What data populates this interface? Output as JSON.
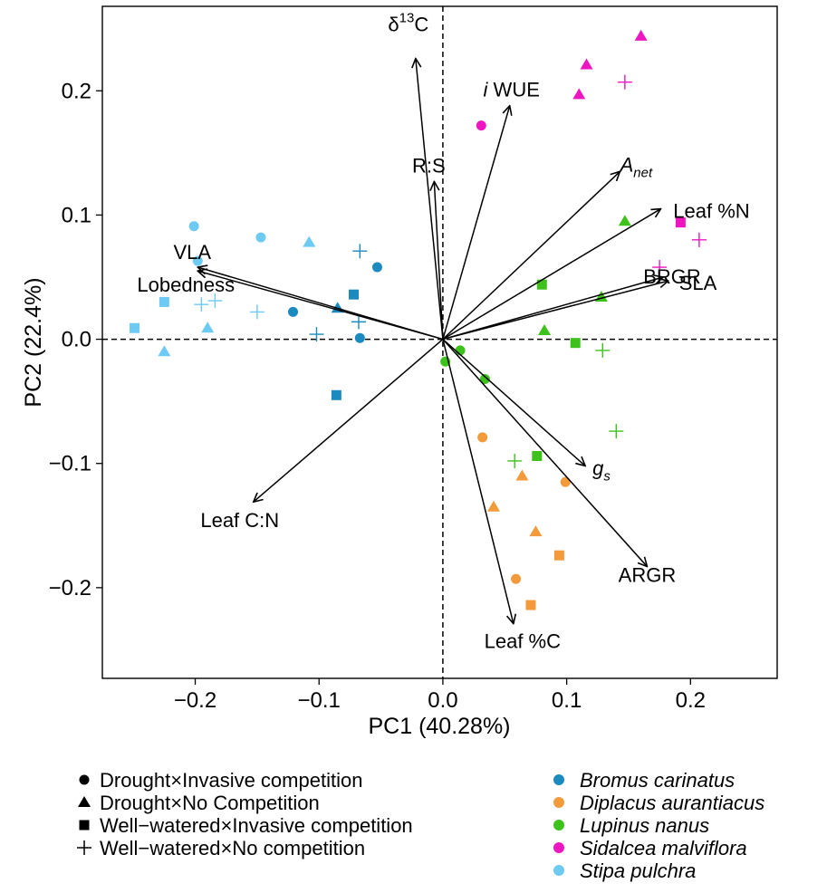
{
  "chart_data": {
    "type": "scatter",
    "subtype": "pca-biplot",
    "title": "",
    "xlabel": "PC1 (40.28%)",
    "ylabel": "PC2 (22.4%)",
    "xlim": [
      -0.275,
      0.27
    ],
    "ylim": [
      -0.273,
      0.268
    ],
    "x_ticks": [
      -0.2,
      -0.1,
      0.0,
      0.1,
      0.2
    ],
    "x_tick_labels": [
      "−0.2",
      "−0.1",
      "0.0",
      "0.1",
      "0.2"
    ],
    "y_ticks": [
      -0.2,
      -0.1,
      0.0,
      0.1,
      0.2
    ],
    "y_tick_labels": [
      "−0.2",
      "−0.1",
      "0.0",
      "0.1",
      "0.2"
    ],
    "grid": false,
    "reference_lines": "dashed lines at x=0 and y=0",
    "treatments": [
      {
        "key": "DI",
        "shape": "circle",
        "label": "Drought×Invasive competition"
      },
      {
        "key": "DN",
        "shape": "triangle",
        "label": "Drought×No Competition"
      },
      {
        "key": "WI",
        "shape": "square",
        "label": "Well−watered×Invasive competition"
      },
      {
        "key": "WN",
        "shape": "plus",
        "label": "Well−watered×No competition"
      }
    ],
    "species": [
      {
        "key": "BC",
        "label": "Bromus carinatus",
        "color": "#1a8abf"
      },
      {
        "key": "DA",
        "label": "Diplacus aurantiacus",
        "color": "#f39a3b"
      },
      {
        "key": "LN",
        "label": "Lupinus nanus",
        "color": "#3cc21b"
      },
      {
        "key": "SM",
        "label": "Sidalcea malviflora",
        "color": "#ee16c1"
      },
      {
        "key": "SP",
        "label": "Stipa pulchra",
        "color": "#6ccaf3"
      }
    ],
    "points": [
      {
        "x": -0.053,
        "y": 0.058,
        "species": "BC",
        "treatment": "DI"
      },
      {
        "x": -0.121,
        "y": 0.022,
        "species": "BC",
        "treatment": "DI"
      },
      {
        "x": -0.067,
        "y": 0.001,
        "species": "BC",
        "treatment": "DI"
      },
      {
        "x": -0.085,
        "y": 0.025,
        "species": "BC",
        "treatment": "DN"
      },
      {
        "x": -0.072,
        "y": 0.036,
        "species": "BC",
        "treatment": "WI"
      },
      {
        "x": -0.086,
        "y": -0.045,
        "species": "BC",
        "treatment": "WI"
      },
      {
        "x": -0.067,
        "y": 0.071,
        "species": "BC",
        "treatment": "WN"
      },
      {
        "x": -0.068,
        "y": 0.014,
        "species": "BC",
        "treatment": "WN"
      },
      {
        "x": -0.102,
        "y": 0.004,
        "species": "BC",
        "treatment": "WN"
      },
      {
        "x": -0.201,
        "y": 0.091,
        "species": "SP",
        "treatment": "DI"
      },
      {
        "x": -0.147,
        "y": 0.082,
        "species": "SP",
        "treatment": "DI"
      },
      {
        "x": -0.198,
        "y": 0.063,
        "species": "SP",
        "treatment": "DI"
      },
      {
        "x": -0.108,
        "y": 0.078,
        "species": "SP",
        "treatment": "DN"
      },
      {
        "x": -0.19,
        "y": 0.009,
        "species": "SP",
        "treatment": "DN"
      },
      {
        "x": -0.225,
        "y": -0.01,
        "species": "SP",
        "treatment": "DN"
      },
      {
        "x": -0.225,
        "y": 0.03,
        "species": "SP",
        "treatment": "WI"
      },
      {
        "x": -0.249,
        "y": 0.009,
        "species": "SP",
        "treatment": "WI"
      },
      {
        "x": -0.195,
        "y": 0.028,
        "species": "SP",
        "treatment": "WN"
      },
      {
        "x": -0.184,
        "y": 0.031,
        "species": "SP",
        "treatment": "WN"
      },
      {
        "x": -0.15,
        "y": 0.022,
        "species": "SP",
        "treatment": "WN"
      },
      {
        "x": 0.002,
        "y": -0.018,
        "species": "LN",
        "treatment": "DI"
      },
      {
        "x": 0.014,
        "y": -0.009,
        "species": "LN",
        "treatment": "DI"
      },
      {
        "x": 0.034,
        "y": -0.032,
        "species": "LN",
        "treatment": "DI"
      },
      {
        "x": 0.147,
        "y": 0.095,
        "species": "LN",
        "treatment": "DN"
      },
      {
        "x": 0.128,
        "y": 0.034,
        "species": "LN",
        "treatment": "DN"
      },
      {
        "x": 0.082,
        "y": 0.007,
        "species": "LN",
        "treatment": "DN"
      },
      {
        "x": 0.08,
        "y": 0.044,
        "species": "LN",
        "treatment": "WI"
      },
      {
        "x": 0.107,
        "y": -0.003,
        "species": "LN",
        "treatment": "WI"
      },
      {
        "x": 0.076,
        "y": -0.094,
        "species": "LN",
        "treatment": "WI"
      },
      {
        "x": 0.129,
        "y": -0.009,
        "species": "LN",
        "treatment": "WN"
      },
      {
        "x": 0.14,
        "y": -0.074,
        "species": "LN",
        "treatment": "WN"
      },
      {
        "x": 0.058,
        "y": -0.098,
        "species": "LN",
        "treatment": "WN"
      },
      {
        "x": 0.032,
        "y": -0.079,
        "species": "DA",
        "treatment": "DI"
      },
      {
        "x": 0.099,
        "y": -0.115,
        "species": "DA",
        "treatment": "DI"
      },
      {
        "x": 0.059,
        "y": -0.193,
        "species": "DA",
        "treatment": "DI"
      },
      {
        "x": 0.064,
        "y": -0.11,
        "species": "DA",
        "treatment": "DN"
      },
      {
        "x": 0.041,
        "y": -0.135,
        "species": "DA",
        "treatment": "DN"
      },
      {
        "x": 0.075,
        "y": -0.155,
        "species": "DA",
        "treatment": "DN"
      },
      {
        "x": 0.094,
        "y": -0.174,
        "species": "DA",
        "treatment": "WI"
      },
      {
        "x": 0.071,
        "y": -0.214,
        "species": "DA",
        "treatment": "WI"
      },
      {
        "x": 0.031,
        "y": 0.172,
        "species": "SM",
        "treatment": "DI"
      },
      {
        "x": 0.16,
        "y": 0.244,
        "species": "SM",
        "treatment": "DN"
      },
      {
        "x": 0.116,
        "y": 0.221,
        "species": "SM",
        "treatment": "DN"
      },
      {
        "x": 0.11,
        "y": 0.197,
        "species": "SM",
        "treatment": "DN"
      },
      {
        "x": 0.192,
        "y": 0.094,
        "species": "SM",
        "treatment": "WI"
      },
      {
        "x": 0.147,
        "y": 0.207,
        "species": "SM",
        "treatment": "WN"
      },
      {
        "x": 0.207,
        "y": 0.08,
        "species": "SM",
        "treatment": "WN"
      },
      {
        "x": 0.175,
        "y": 0.058,
        "species": "SM",
        "treatment": "WN"
      }
    ],
    "loadings": [
      {
        "label": "δ¹³C",
        "x": -0.022,
        "y": 0.226
      },
      {
        "label": "i WUE",
        "x": 0.054,
        "y": 0.188
      },
      {
        "label": "R:S",
        "x": -0.007,
        "y": 0.127
      },
      {
        "label": "A net",
        "x": 0.143,
        "y": 0.135
      },
      {
        "label": "Leaf %N",
        "x": 0.176,
        "y": 0.105
      },
      {
        "label": "BRGR",
        "x": 0.178,
        "y": 0.05
      },
      {
        "label": "SLA",
        "x": 0.182,
        "y": 0.047
      },
      {
        "label": "VLA",
        "x": -0.198,
        "y": 0.058
      },
      {
        "label": "Lobedness",
        "x": -0.198,
        "y": 0.055
      },
      {
        "label": "g s",
        "x": 0.115,
        "y": -0.102
      },
      {
        "label": "ARGR",
        "x": 0.165,
        "y": -0.183
      },
      {
        "label": "Leaf %C",
        "x": 0.057,
        "y": -0.229
      },
      {
        "label": "Leaf C:N",
        "x": -0.153,
        "y": -0.131
      }
    ]
  }
}
